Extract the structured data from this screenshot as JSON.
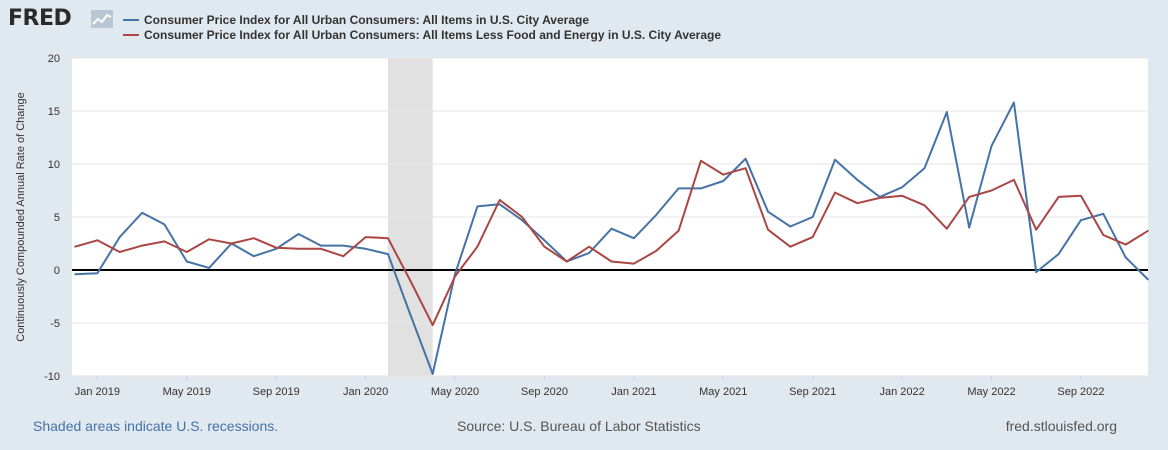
{
  "header": {
    "logo_text": "FRED",
    "logo_icon": "fred-chart-icon"
  },
  "chart_data": {
    "type": "line",
    "ylabel": "Continuously Compounded Annual Rate of Change",
    "xlabel": "",
    "ylim": [
      -10,
      20
    ],
    "y_ticks": [
      "20",
      "15",
      "10",
      "5",
      "0",
      "-5",
      "-10"
    ],
    "x_ticks": [
      {
        "label": "Jan 2019",
        "x": "2019-01"
      },
      {
        "label": "May 2019",
        "x": "2019-05"
      },
      {
        "label": "Sep 2019",
        "x": "2019-09"
      },
      {
        "label": "Jan 2020",
        "x": "2020-01"
      },
      {
        "label": "May 2020",
        "x": "2020-05"
      },
      {
        "label": "Sep 2020",
        "x": "2020-09"
      },
      {
        "label": "Jan 2021",
        "x": "2021-01"
      },
      {
        "label": "May 2021",
        "x": "2021-05"
      },
      {
        "label": "Sep 2021",
        "x": "2021-09"
      },
      {
        "label": "Jan 2022",
        "x": "2022-01"
      },
      {
        "label": "May 2022",
        "x": "2022-05"
      },
      {
        "label": "Sep 2022",
        "x": "2022-09"
      }
    ],
    "recession": {
      "start": "2020-02",
      "end": "2020-04"
    },
    "grid": true,
    "zero_line": true,
    "legend_position": "top-left",
    "x": [
      "2018-12",
      "2019-01",
      "2019-02",
      "2019-03",
      "2019-04",
      "2019-05",
      "2019-06",
      "2019-07",
      "2019-08",
      "2019-09",
      "2019-10",
      "2019-11",
      "2019-12",
      "2020-01",
      "2020-02",
      "2020-03",
      "2020-04",
      "2020-05",
      "2020-06",
      "2020-07",
      "2020-08",
      "2020-09",
      "2020-10",
      "2020-11",
      "2020-12",
      "2021-01",
      "2021-02",
      "2021-03",
      "2021-04",
      "2021-05",
      "2021-06",
      "2021-07",
      "2021-08",
      "2021-09",
      "2021-10",
      "2021-11",
      "2021-12",
      "2022-01",
      "2022-02",
      "2022-03",
      "2022-04",
      "2022-05",
      "2022-06",
      "2022-07",
      "2022-08",
      "2022-09",
      "2022-10",
      "2022-11",
      "2022-12"
    ],
    "series": [
      {
        "name": "Consumer Price Index for All Urban Consumers: All Items in U.S. City Average",
        "color": "#4572a7",
        "values": [
          -0.4,
          -0.3,
          3.1,
          5.4,
          4.3,
          0.8,
          0.2,
          2.5,
          1.3,
          2.0,
          3.4,
          2.3,
          2.3,
          2.0,
          1.5,
          -4.2,
          -9.8,
          -0.4,
          6.0,
          6.2,
          4.7,
          2.8,
          0.8,
          1.6,
          3.9,
          3.0,
          5.2,
          7.7,
          7.7,
          8.4,
          10.5,
          5.5,
          4.1,
          5.0,
          10.4,
          8.5,
          6.9,
          7.8,
          9.6,
          14.9,
          4.0,
          11.7,
          15.8,
          -0.2,
          1.5,
          4.7,
          5.3,
          1.2,
          -0.9
        ]
      },
      {
        "name": "Consumer Price Index for All Urban Consumers: All Items Less Food and Energy in U.S. City Average",
        "color": "#aa4643",
        "values": [
          2.2,
          2.8,
          1.7,
          2.3,
          2.7,
          1.7,
          2.9,
          2.5,
          3.0,
          2.1,
          2.0,
          2.0,
          1.3,
          3.1,
          3.0,
          -1.0,
          -5.2,
          -0.6,
          2.2,
          6.6,
          5.0,
          2.2,
          0.8,
          2.2,
          0.8,
          0.6,
          1.8,
          3.7,
          10.3,
          9.0,
          9.6,
          3.8,
          2.2,
          3.1,
          7.3,
          6.3,
          6.8,
          7.0,
          6.1,
          3.9,
          6.9,
          7.5,
          8.5,
          3.8,
          6.9,
          7.0,
          3.3,
          2.4,
          3.7
        ]
      }
    ]
  },
  "footer": {
    "recession_note": "Shaded areas indicate U.S. recessions.",
    "source": "Source: U.S. Bureau of Labor Statistics",
    "site": "fred.stlouisfed.org"
  }
}
